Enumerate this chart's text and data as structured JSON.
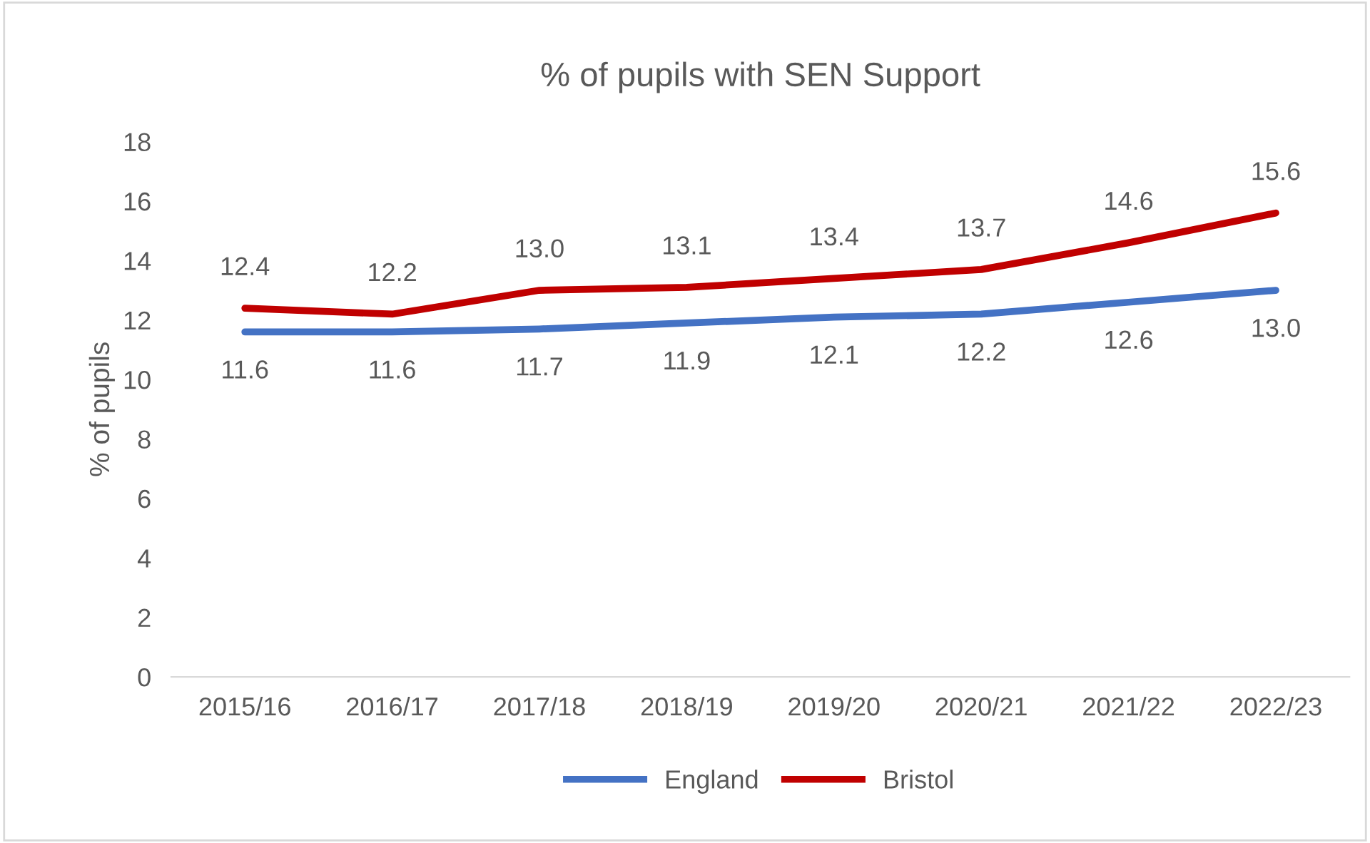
{
  "chart_data": {
    "type": "line",
    "title": "% of pupils with SEN Support",
    "ylabel": "% of pupils",
    "categories": [
      "2015/16",
      "2016/17",
      "2017/18",
      "2018/19",
      "2019/20",
      "2020/21",
      "2021/22",
      "2022/23"
    ],
    "series": [
      {
        "name": "England",
        "color": "#4472c4",
        "values": [
          11.6,
          11.6,
          11.7,
          11.9,
          12.1,
          12.2,
          12.6,
          13.0
        ],
        "value_labels": [
          "11.6",
          "11.6",
          "11.7",
          "11.9",
          "12.1",
          "12.2",
          "12.6",
          "13.0"
        ]
      },
      {
        "name": "Bristol",
        "color": "#c00000",
        "values": [
          12.4,
          12.2,
          13.0,
          13.1,
          13.4,
          13.7,
          14.6,
          15.6
        ],
        "value_labels": [
          "12.4",
          "12.2",
          "13.0",
          "13.1",
          "13.4",
          "13.7",
          "14.6",
          "15.6"
        ]
      }
    ],
    "ylim": [
      0,
      18
    ],
    "yticks": [
      0,
      2,
      4,
      6,
      8,
      10,
      12,
      14,
      16,
      18
    ],
    "legend": "bottom",
    "grid": false,
    "marker": "none",
    "line_style": "solid"
  }
}
